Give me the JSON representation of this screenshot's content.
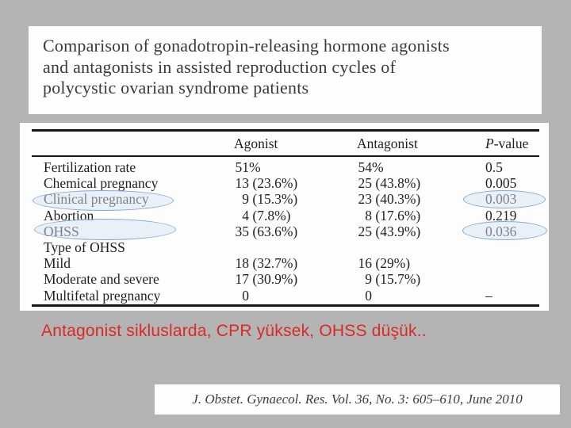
{
  "slide": {
    "title_lines": [
      "Comparison of gonadotropin-releasing hormone agonists",
      "and antagonists in assisted reproduction cycles of",
      "polycystic ovarian syndrome patients"
    ],
    "annotation": "Antagonist sikluslarda, CPR yüksek, OHSS düşük..",
    "citation": "J. Obstet. Gynaecol. Res. Vol. 36, No. 3: 605–610, June 2010"
  },
  "table": {
    "headers": {
      "agonist": "Agonist",
      "antagonist": "Antagonist",
      "p_italic": "P",
      "p_rest": "-value"
    },
    "rows": [
      {
        "label": "Fertilization rate",
        "a_num": "51",
        "a_rest": "%",
        "b_num": "54",
        "b_rest": "%",
        "p": "0.5"
      },
      {
        "label": "Chemical pregnancy",
        "a_num": "13",
        "a_rest": " (23.6%)",
        "b_num": "25",
        "b_rest": " (43.8%)",
        "p": "0.005"
      },
      {
        "label": "Clinical pregnancy",
        "a_num": "9",
        "a_rest": " (15.3%)",
        "b_num": "23",
        "b_rest": " (40.3%)",
        "p": "0.003"
      },
      {
        "label": "Abortion",
        "a_num": "4",
        "a_rest": " (7.8%)",
        "b_num": "8",
        "b_rest": " (17.6%)",
        "p": "0.219"
      },
      {
        "label": "OHSS",
        "a_num": "35",
        "a_rest": " (63.6%)",
        "b_num": "25",
        "b_rest": " (43.9%)",
        "p": "0.036"
      },
      {
        "label": "Type of OHSS",
        "a_num": "",
        "a_rest": "",
        "b_num": "",
        "b_rest": "",
        "p": ""
      },
      {
        "label": "Mild",
        "a_num": "18",
        "a_rest": " (32.7%)",
        "b_num": "16",
        "b_rest": " (29%)",
        "p": ""
      },
      {
        "label": "Moderate and severe",
        "a_num": "17",
        "a_rest": " (30.9%)",
        "b_num": "9",
        "b_rest": " (15.7%)",
        "p": ""
      },
      {
        "label": "Multifetal pregnancy",
        "a_num": "0",
        "a_rest": "",
        "b_num": "0",
        "b_rest": "",
        "p": "–"
      }
    ],
    "highlighted_cells": [
      "Clinical pregnancy (row label)",
      "OHSS (row label)",
      "P-value 0.003",
      "P-value 0.036"
    ]
  },
  "colors": {
    "slide_background": "#b4b4b4",
    "panel_white": "#fdfdfd",
    "highlight_stroke": "#84a9d4",
    "highlight_fill": "rgba(213,227,241,0.5)",
    "annotation_red": "#d92a26",
    "table_ink": "#1f1f1f"
  }
}
